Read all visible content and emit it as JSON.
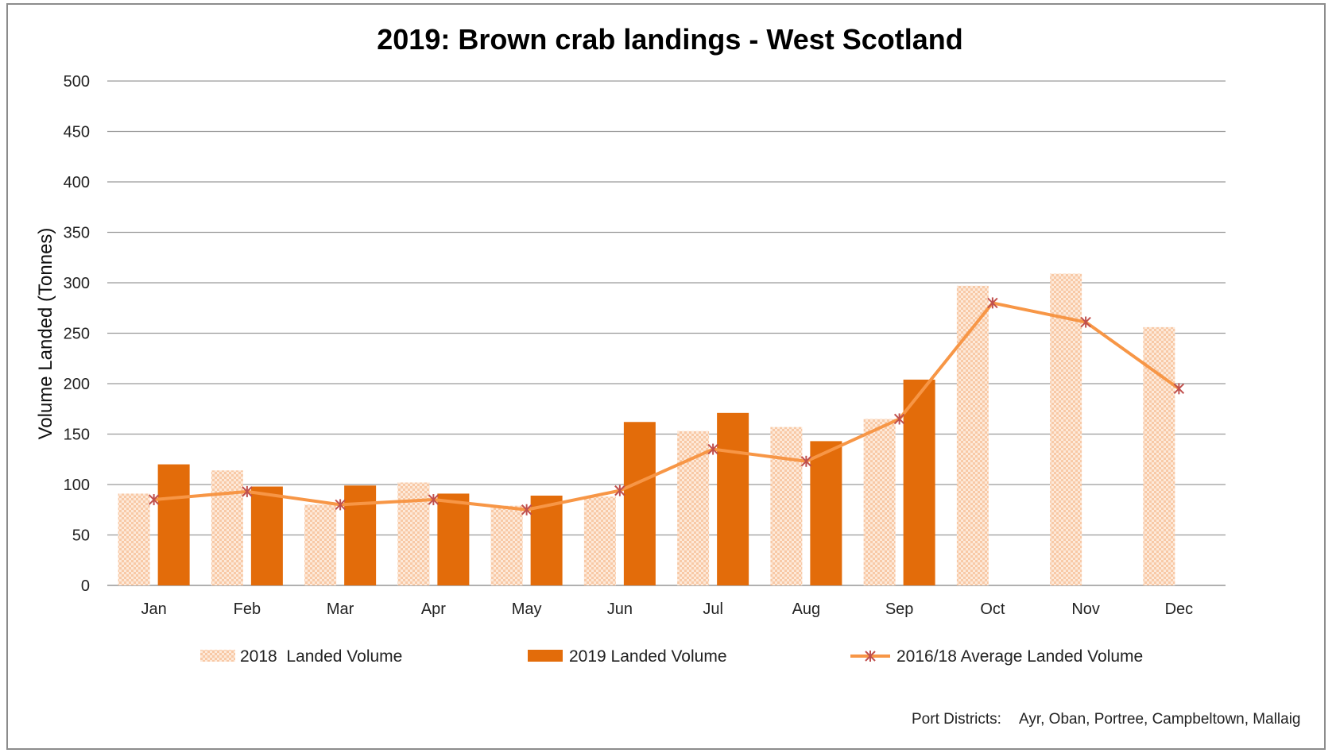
{
  "colors": {
    "bar_2018": "#f8c9a6",
    "bar_2019": "#e36c0a",
    "line_avg": "#f79646",
    "marker": "#c0504d",
    "grid": "#9a9a9a",
    "axis": "#808080"
  },
  "footnote": {
    "label": "Port Districts:",
    "value": "Ayr, Oban, Portree, Campbeltown, Mallaig"
  },
  "chart_data": {
    "type": "bar",
    "title": "2019: Brown crab landings - West Scotland",
    "xlabel": "",
    "ylabel": "Volume Landed (Tonnes)",
    "ylim": [
      0,
      500
    ],
    "yticks": [
      0,
      50,
      100,
      150,
      200,
      250,
      300,
      350,
      400,
      450,
      500
    ],
    "grid": true,
    "legend_position": "bottom",
    "categories": [
      "Jan",
      "Feb",
      "Mar",
      "Apr",
      "May",
      "Jun",
      "Jul",
      "Aug",
      "Sep",
      "Oct",
      "Nov",
      "Dec"
    ],
    "series": [
      {
        "name": "2018  Landed Volume",
        "type": "bar",
        "style": "pattern",
        "values": [
          91,
          114,
          80,
          102,
          79,
          88,
          153,
          157,
          165,
          297,
          309,
          256
        ]
      },
      {
        "name": "2019 Landed Volume",
        "type": "bar",
        "style": "solid",
        "values": [
          120,
          98,
          99,
          91,
          89,
          162,
          171,
          143,
          204,
          null,
          null,
          null
        ]
      },
      {
        "name": "2016/18 Average Landed Volume",
        "type": "line",
        "marker": "star",
        "values": [
          85,
          93,
          80,
          85,
          75,
          94,
          135,
          123,
          165,
          280,
          261,
          195
        ]
      }
    ]
  }
}
